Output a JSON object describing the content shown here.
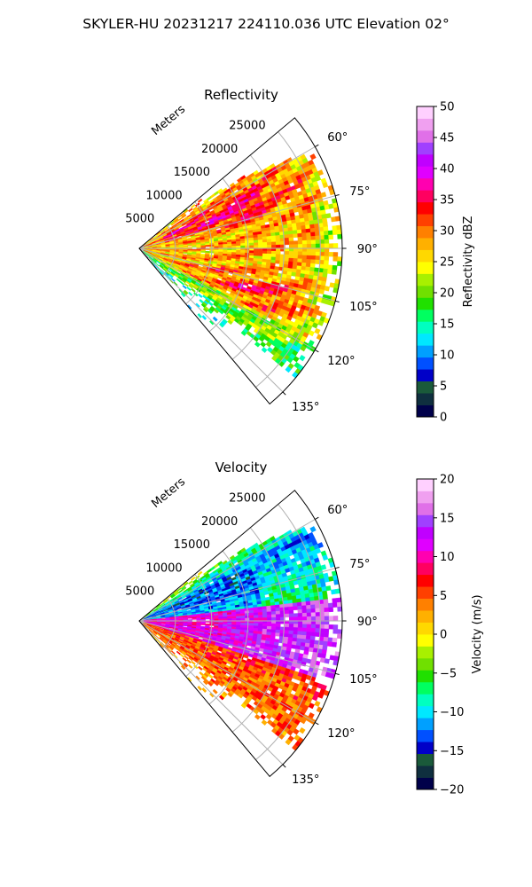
{
  "figure_title": "SKYLER-HU  20231217  224110.036 UTC Elevation 02°",
  "chart_data": [
    {
      "type": "heatmap",
      "projection": "polar-sector",
      "title": "Reflectivity",
      "range_axis_label": "Meters",
      "range_ticks": [
        5000,
        10000,
        15000,
        20000,
        25000
      ],
      "range_tick_labels": [
        "5000",
        "10000",
        "15000",
        "20000",
        "25000"
      ],
      "rlim": [
        0,
        28000
      ],
      "azimuth_range_deg": [
        50,
        140
      ],
      "azimuth_ticks": [
        60,
        75,
        90,
        105,
        120,
        135
      ],
      "azimuth_tick_labels": [
        "60°",
        "75°",
        "90°",
        "105°",
        "120°",
        "135°"
      ],
      "grid": true,
      "colorbar": {
        "label": "Reflectivity dBZ",
        "vmin": 0,
        "vmax": 50,
        "ticks": [
          0,
          5,
          10,
          15,
          20,
          25,
          30,
          35,
          40,
          45,
          50
        ],
        "tick_labels": [
          "0",
          "5",
          "10",
          "15",
          "20",
          "25",
          "30",
          "35",
          "40",
          "45",
          "50"
        ],
        "colors": [
          "#00004a",
          "#0f2f3f",
          "#1a5a3a",
          "#0000c8",
          "#0050ff",
          "#00a0ff",
          "#00e8ff",
          "#00ffc0",
          "#00ff60",
          "#20e000",
          "#70e000",
          "#a8f000",
          "#ffff00",
          "#ffd800",
          "#ffb000",
          "#ff8000",
          "#ff4000",
          "#ff0000",
          "#ff0060",
          "#ff00b0",
          "#e000ff",
          "#c000ff",
          "#a040ff",
          "#e070e8",
          "#f0a0f0",
          "#ffd0ff"
        ]
      }
    },
    {
      "type": "heatmap",
      "projection": "polar-sector",
      "title": "Velocity",
      "range_axis_label": "Meters",
      "range_ticks": [
        5000,
        10000,
        15000,
        20000,
        25000
      ],
      "range_tick_labels": [
        "5000",
        "10000",
        "15000",
        "20000",
        "25000"
      ],
      "rlim": [
        0,
        28000
      ],
      "azimuth_range_deg": [
        50,
        140
      ],
      "azimuth_ticks": [
        60,
        75,
        90,
        105,
        120,
        135
      ],
      "azimuth_tick_labels": [
        "60°",
        "75°",
        "90°",
        "105°",
        "120°",
        "135°"
      ],
      "grid": true,
      "colorbar": {
        "label": "Velocity (m/s)",
        "vmin": -20,
        "vmax": 20,
        "ticks": [
          -20,
          -15,
          -10,
          -5,
          0,
          5,
          10,
          15,
          20
        ],
        "tick_labels": [
          "−20",
          "−15",
          "−10",
          "−5",
          "0",
          "5",
          "10",
          "15",
          "20"
        ],
        "colors": [
          "#00004a",
          "#0f2f3f",
          "#1a5a3a",
          "#0000c8",
          "#0050ff",
          "#00a0ff",
          "#00e8ff",
          "#00ffc0",
          "#00ff60",
          "#20e000",
          "#70e000",
          "#a8f000",
          "#ffff00",
          "#ffd800",
          "#ffb000",
          "#ff8000",
          "#ff4000",
          "#ff0000",
          "#ff0060",
          "#ff00b0",
          "#e000ff",
          "#c000ff",
          "#a040ff",
          "#e070e8",
          "#f0a0f0",
          "#ffd0ff"
        ]
      }
    }
  ]
}
